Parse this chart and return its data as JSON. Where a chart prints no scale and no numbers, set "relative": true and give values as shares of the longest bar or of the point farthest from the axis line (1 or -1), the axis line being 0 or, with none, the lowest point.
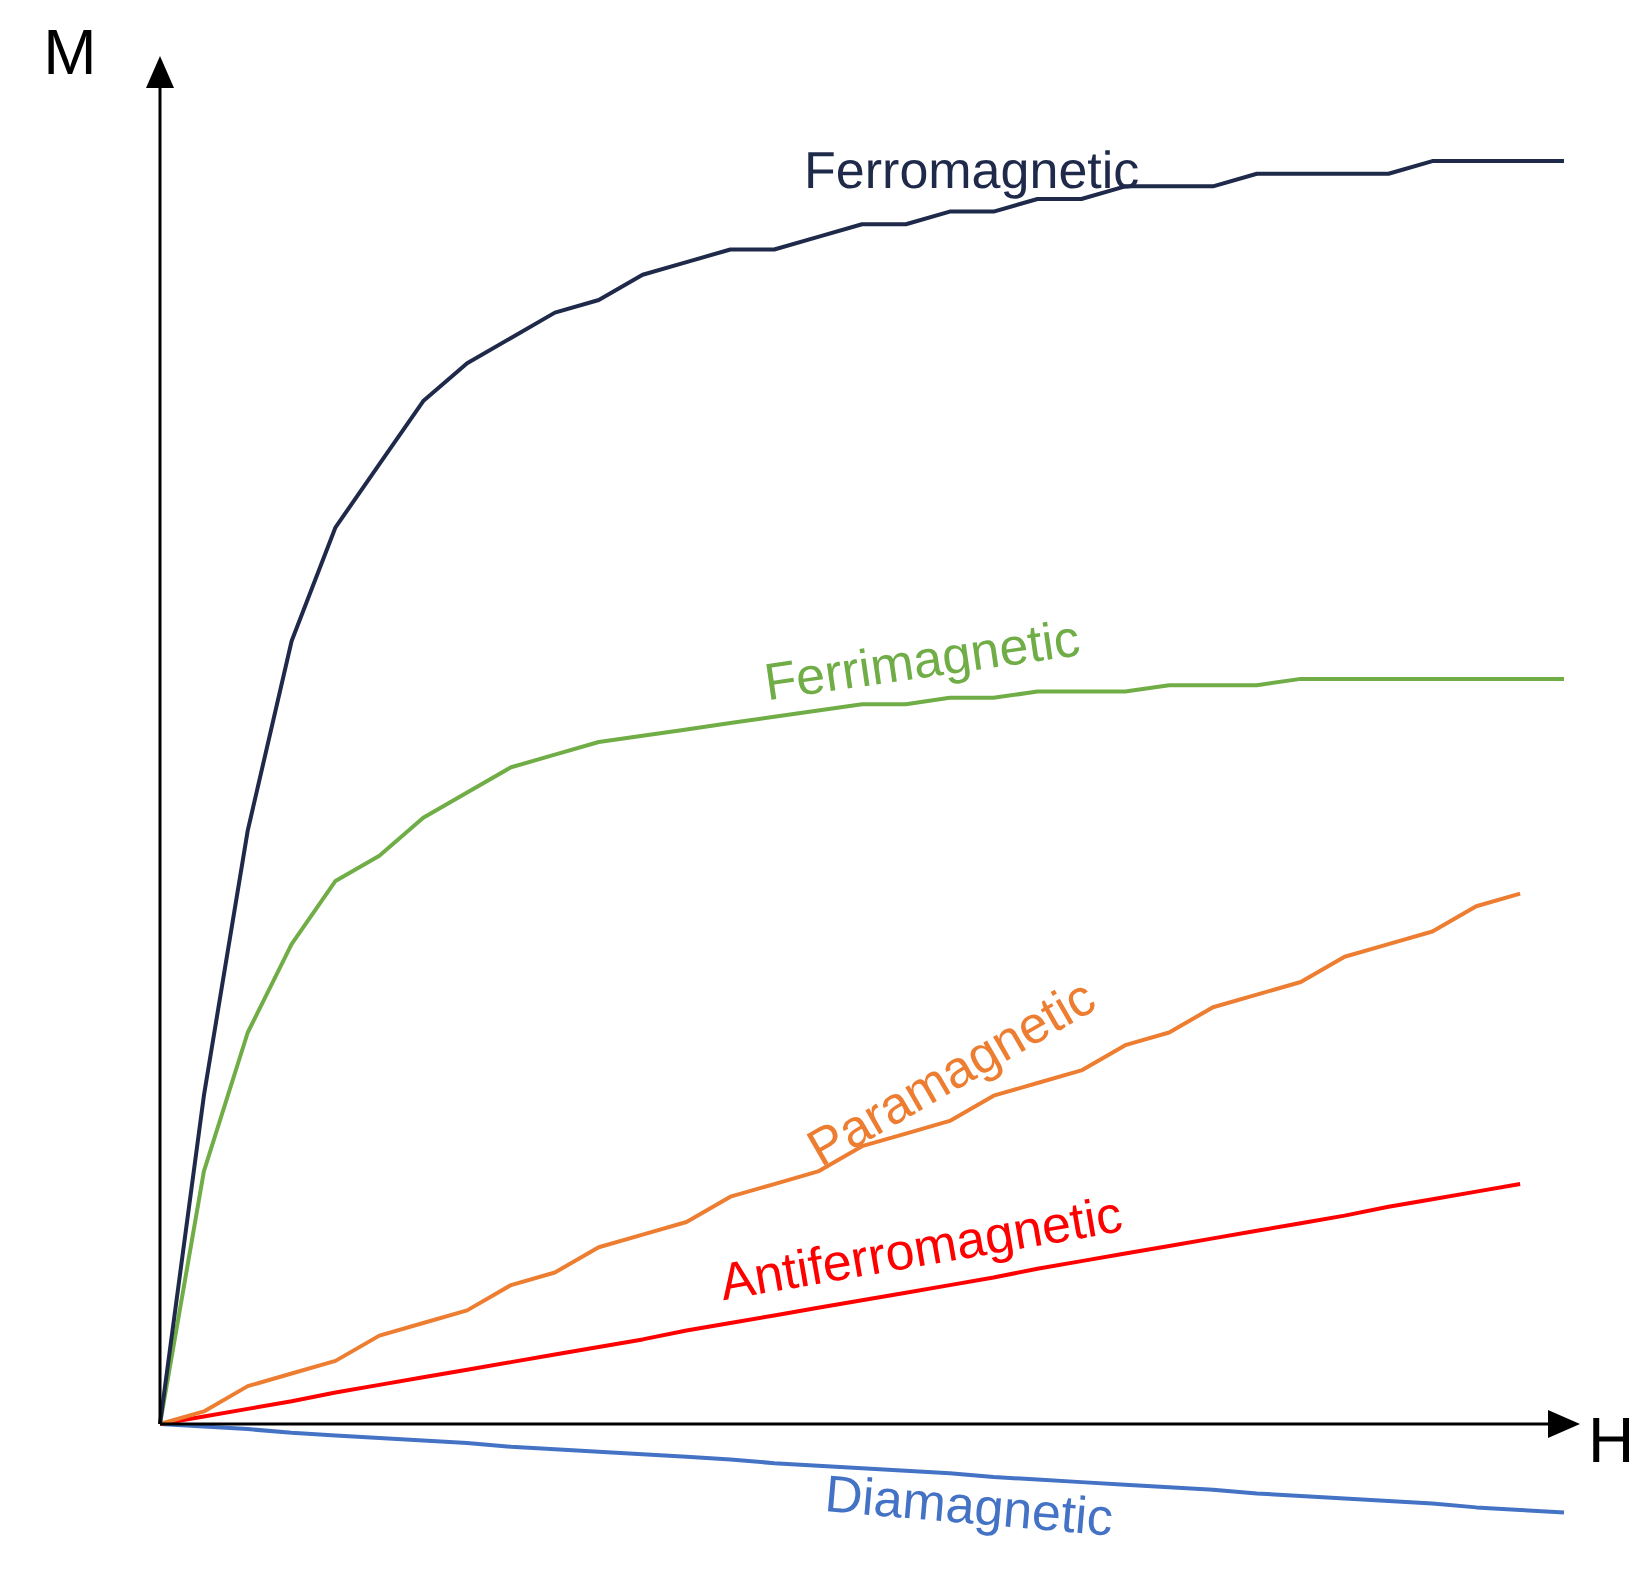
{
  "chart_data": {
    "type": "line",
    "relative": true,
    "xlabel": "H",
    "ylabel": "M",
    "legend": false,
    "grid": false,
    "marker": "none",
    "categories": [
      null,
      null,
      null,
      null,
      null,
      null,
      null,
      null,
      null,
      null,
      null,
      null,
      null,
      null,
      null,
      null,
      null,
      null,
      null,
      null,
      null,
      null,
      null,
      null,
      null,
      null,
      null,
      null,
      null,
      null,
      null,
      null,
      null
    ],
    "series": [
      {
        "name": "Ferromagnetic",
        "color": "#1f2a4a",
        "values": [
          0,
          0.26,
          0.47,
          0.62,
          0.71,
          0.76,
          0.81,
          0.84,
          0.86,
          0.88,
          0.89,
          0.91,
          0.92,
          0.93,
          0.93,
          0.94,
          0.95,
          0.95,
          0.96,
          0.96,
          0.97,
          0.97,
          0.98,
          0.98,
          0.98,
          0.99,
          0.99,
          0.99,
          0.99,
          1,
          1,
          1,
          1
        ]
      },
      {
        "name": "Ferrimagnetic",
        "color": "#70ad47",
        "values": [
          0,
          0.2,
          0.31,
          0.38,
          0.43,
          0.45,
          0.48,
          0.5,
          0.52,
          0.53,
          0.54,
          0.545,
          0.55,
          0.555,
          0.56,
          0.565,
          0.57,
          0.57,
          0.575,
          0.575,
          0.58,
          0.58,
          0.58,
          0.585,
          0.585,
          0.585,
          0.59,
          0.59,
          0.59,
          0.59,
          0.59,
          0.59,
          0.59
        ]
      },
      {
        "name": "Paramagnetic",
        "color": "#ed7d31",
        "values": [
          0,
          0.01,
          0.03,
          0.04,
          0.05,
          0.07,
          0.08,
          0.09,
          0.11,
          0.12,
          0.14,
          0.15,
          0.16,
          0.18,
          0.19,
          0.2,
          0.22,
          0.23,
          0.24,
          0.26,
          0.27,
          0.28,
          0.3,
          0.31,
          0.33,
          0.34,
          0.35,
          0.37,
          0.38,
          0.39,
          0.41,
          0.42,
          null
        ]
      },
      {
        "name": "Antiferromagnetic",
        "color": "#ff0000",
        "values": [
          0,
          0.006,
          0.012,
          0.018,
          0.025,
          0.031,
          0.037,
          0.043,
          0.049,
          0.055,
          0.061,
          0.067,
          0.074,
          0.08,
          0.086,
          0.092,
          0.098,
          0.104,
          0.11,
          0.116,
          0.123,
          0.129,
          0.135,
          0.141,
          0.147,
          0.153,
          0.159,
          0.165,
          0.172,
          0.178,
          0.184,
          0.19,
          null
        ]
      },
      {
        "name": "Diamagnetic",
        "color": "#4472c4",
        "values": [
          0,
          -0.002,
          -0.004,
          -0.007,
          -0.009,
          -0.011,
          -0.013,
          -0.015,
          -0.018,
          -0.02,
          -0.022,
          -0.024,
          -0.026,
          -0.028,
          -0.031,
          -0.033,
          -0.035,
          -0.037,
          -0.039,
          -0.042,
          -0.044,
          -0.046,
          -0.048,
          -0.05,
          -0.052,
          -0.055,
          -0.057,
          -0.059,
          -0.061,
          -0.063,
          -0.066,
          -0.068,
          -0.07
        ]
      }
    ]
  }
}
